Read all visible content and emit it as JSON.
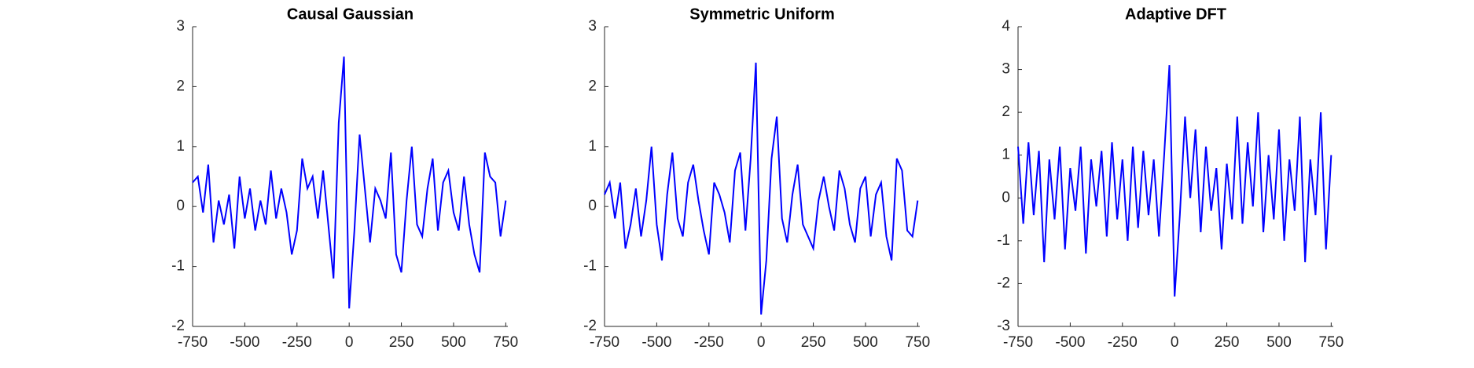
{
  "chart_data": [
    {
      "type": "line",
      "title": "Causal Gaussian",
      "x": [
        -750,
        -725,
        -700,
        -675,
        -650,
        -625,
        -600,
        -575,
        -550,
        -525,
        -500,
        -475,
        -450,
        -425,
        -400,
        -375,
        -350,
        -325,
        -300,
        -275,
        -250,
        -225,
        -200,
        -175,
        -150,
        -125,
        -100,
        -75,
        -50,
        -25,
        0,
        25,
        50,
        75,
        100,
        125,
        150,
        175,
        200,
        225,
        250,
        275,
        300,
        325,
        350,
        375,
        400,
        425,
        450,
        475,
        500,
        525,
        550,
        575,
        600,
        625,
        650,
        675,
        700,
        725,
        750
      ],
      "series": [
        {
          "name": "Causal Gaussian",
          "color": "#0000ff",
          "values": [
            0.4,
            0.5,
            -0.1,
            0.7,
            -0.6,
            0.1,
            -0.3,
            0.2,
            -0.7,
            0.5,
            -0.2,
            0.3,
            -0.4,
            0.1,
            -0.3,
            0.6,
            -0.2,
            0.3,
            -0.1,
            -0.8,
            -0.4,
            0.8,
            0.3,
            0.5,
            -0.2,
            0.6,
            -0.3,
            -1.2,
            1.4,
            2.5,
            -1.7,
            -0.4,
            1.2,
            0.3,
            -0.6,
            0.3,
            0.1,
            -0.2,
            0.9,
            -0.8,
            -1.1,
            0.1,
            1.0,
            -0.3,
            -0.5,
            0.3,
            0.8,
            -0.4,
            0.4,
            0.6,
            -0.1,
            -0.4,
            0.5,
            -0.3,
            -0.8,
            -1.1,
            0.9,
            0.5,
            0.4,
            -0.5,
            0.1
          ]
        }
      ],
      "xlim": [
        -750,
        760
      ],
      "xticks": [
        -750,
        -500,
        -250,
        0,
        250,
        500,
        750
      ],
      "ylim": [
        -2,
        3
      ],
      "yticks": [
        -2,
        -1,
        0,
        1,
        2,
        3
      ]
    },
    {
      "type": "line",
      "title": "Symmetric Uniform",
      "x": [
        -750,
        -725,
        -700,
        -675,
        -650,
        -625,
        -600,
        -575,
        -550,
        -525,
        -500,
        -475,
        -450,
        -425,
        -400,
        -375,
        -350,
        -325,
        -300,
        -275,
        -250,
        -225,
        -200,
        -175,
        -150,
        -125,
        -100,
        -75,
        -50,
        -25,
        0,
        25,
        50,
        75,
        100,
        125,
        150,
        175,
        200,
        225,
        250,
        275,
        300,
        325,
        350,
        375,
        400,
        425,
        450,
        475,
        500,
        525,
        550,
        575,
        600,
        625,
        650,
        675,
        700,
        725,
        750
      ],
      "series": [
        {
          "name": "Symmetric Uniform",
          "color": "#0000ff",
          "values": [
            0.2,
            0.4,
            -0.2,
            0.4,
            -0.7,
            -0.3,
            0.3,
            -0.5,
            0.1,
            1.0,
            -0.3,
            -0.9,
            0.2,
            0.9,
            -0.2,
            -0.5,
            0.4,
            0.7,
            0.1,
            -0.4,
            -0.8,
            0.4,
            0.2,
            -0.1,
            -0.6,
            0.6,
            0.9,
            -0.4,
            0.8,
            2.4,
            -1.8,
            -0.9,
            0.8,
            1.5,
            -0.2,
            -0.6,
            0.2,
            0.7,
            -0.3,
            -0.5,
            -0.7,
            0.1,
            0.5,
            0.0,
            -0.4,
            0.6,
            0.3,
            -0.3,
            -0.6,
            0.3,
            0.5,
            -0.5,
            0.2,
            0.4,
            -0.5,
            -0.9,
            0.8,
            0.6,
            -0.4,
            -0.5,
            0.1
          ]
        }
      ],
      "xlim": [
        -750,
        760
      ],
      "xticks": [
        -750,
        -500,
        -250,
        0,
        250,
        500,
        750
      ],
      "ylim": [
        -2,
        3
      ],
      "yticks": [
        -2,
        -1,
        0,
        1,
        2,
        3
      ]
    },
    {
      "type": "line",
      "title": "Adaptive DFT",
      "x": [
        -750,
        -725,
        -700,
        -675,
        -650,
        -625,
        -600,
        -575,
        -550,
        -525,
        -500,
        -475,
        -450,
        -425,
        -400,
        -375,
        -350,
        -325,
        -300,
        -275,
        -250,
        -225,
        -200,
        -175,
        -150,
        -125,
        -100,
        -75,
        -50,
        -25,
        0,
        25,
        50,
        75,
        100,
        125,
        150,
        175,
        200,
        225,
        250,
        275,
        300,
        325,
        350,
        375,
        400,
        425,
        450,
        475,
        500,
        525,
        550,
        575,
        600,
        625,
        650,
        675,
        700,
        725,
        750
      ],
      "series": [
        {
          "name": "Adaptive DFT",
          "color": "#0000ff",
          "values": [
            1.2,
            -0.6,
            1.3,
            -0.4,
            1.1,
            -1.5,
            0.9,
            -0.5,
            1.2,
            -1.2,
            0.7,
            -0.3,
            1.2,
            -1.3,
            0.9,
            -0.2,
            1.1,
            -0.9,
            1.3,
            -0.5,
            0.9,
            -1.0,
            1.2,
            -0.7,
            1.1,
            -0.4,
            0.9,
            -0.9,
            1.0,
            3.1,
            -2.3,
            -0.4,
            1.9,
            0.0,
            1.6,
            -0.8,
            1.2,
            -0.3,
            0.7,
            -1.2,
            0.8,
            -0.5,
            1.9,
            -0.6,
            1.3,
            -0.2,
            2.0,
            -0.8,
            1.0,
            -0.5,
            1.6,
            -1.0,
            0.9,
            -0.3,
            1.9,
            -1.5,
            0.9,
            -0.4,
            2.0,
            -1.2,
            1.0
          ]
        }
      ],
      "xlim": [
        -750,
        760
      ],
      "xticks": [
        -750,
        -500,
        -250,
        0,
        250,
        500,
        750
      ],
      "ylim": [
        -3,
        4
      ],
      "yticks": [
        -3,
        -2,
        -1,
        0,
        1,
        2,
        3,
        4
      ]
    }
  ]
}
